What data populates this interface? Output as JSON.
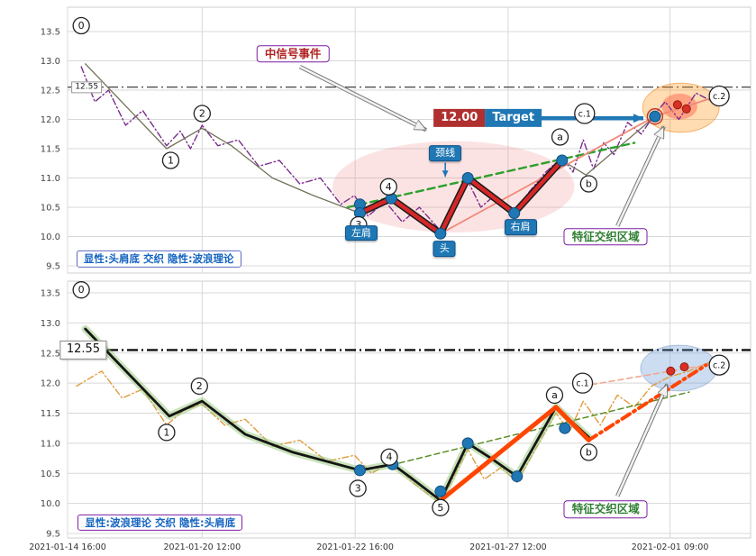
{
  "axis": {
    "x_tick_labels": [
      "2021-01-14 16:00",
      "2021-01-20 12:00",
      "2021-01-22 16:00",
      "2021-01-27 12:00",
      "2021-02-01 09:00"
    ],
    "x_tick_positions": [
      0,
      19.7,
      42.1,
      64.5,
      88.2
    ],
    "y_ticks": [
      13.5,
      13.0,
      12.5,
      12.0,
      11.5,
      11.0,
      10.5,
      10.0,
      9.5
    ]
  },
  "colors": {
    "accent_blue": "#1f77b4",
    "pattern_red": "#d62728",
    "emerging_orange": "#ff4500",
    "hidden_purple": "#7b2d8e",
    "hidden_orange": "#e09c3c",
    "neckline_green": "#2ca02c",
    "grid": "#d8d8d8"
  },
  "chart_data": [
    {
      "id": "top",
      "type": "line",
      "ylim": [
        9.5,
        13.5
      ],
      "level_line": {
        "value": 12.55,
        "label": "12.55"
      },
      "series": [
        {
          "name": "hidden-wave-theory",
          "color": "#7b2d8e",
          "width": 1.4,
          "dash": "7 3 1.5 3",
          "points": [
            [
              2,
              12.9
            ],
            [
              4,
              12.3
            ],
            [
              6,
              12.5
            ],
            [
              8.5,
              11.9
            ],
            [
              11,
              12.15
            ],
            [
              14.5,
              11.55
            ],
            [
              16.5,
              11.8
            ],
            [
              18,
              11.5
            ],
            [
              19.7,
              11.9
            ],
            [
              22,
              11.55
            ],
            [
              25,
              11.65
            ],
            [
              28,
              11.2
            ],
            [
              31,
              11.3
            ],
            [
              34,
              10.9
            ],
            [
              37,
              11.0
            ],
            [
              40,
              10.55
            ],
            [
              42,
              10.7
            ],
            [
              44,
              10.35
            ],
            [
              46.5,
              10.6
            ],
            [
              49,
              10.25
            ],
            [
              51.5,
              10.5
            ],
            [
              54.6,
              10.1
            ],
            [
              56.5,
              10.6
            ],
            [
              58.6,
              10.95
            ],
            [
              60.5,
              10.5
            ],
            [
              62.5,
              10.7
            ],
            [
              65,
              10.35
            ],
            [
              67.5,
              10.75
            ],
            [
              70,
              11.1
            ],
            [
              72.4,
              11.35
            ],
            [
              74,
              11.1
            ],
            [
              75.5,
              11.65
            ],
            [
              77,
              11.15
            ],
            [
              78.5,
              11.6
            ],
            [
              80,
              11.4
            ],
            [
              82,
              11.95
            ],
            [
              84,
              11.75
            ],
            [
              86,
              12.1
            ],
            [
              87.5,
              12.3
            ],
            [
              89.5,
              12.0
            ],
            [
              92,
              12.45
            ],
            [
              94.5,
              12.3
            ]
          ]
        },
        {
          "name": "price-main",
          "color": "#72725a",
          "width": 1.3,
          "points": [
            [
              2.6,
              12.95
            ],
            [
              14.5,
              11.5
            ],
            [
              19.7,
              11.85
            ],
            [
              24,
              11.55
            ],
            [
              30,
              11.0
            ],
            [
              36,
              10.7
            ],
            [
              42.8,
              10.4
            ],
            [
              47.4,
              10.65
            ],
            [
              54.6,
              10.05
            ],
            [
              58.6,
              11.0
            ],
            [
              65.4,
              10.4
            ],
            [
              72.4,
              11.3
            ],
            [
              75.9,
              11.05
            ],
            [
              86,
              12.05
            ]
          ]
        },
        {
          "name": "neckline-trend",
          "color": "#2ca02c",
          "width": 2.4,
          "dash": "8 5",
          "points": [
            [
              41,
              10.5
            ],
            [
              83,
              11.6
            ]
          ]
        },
        {
          "name": "projection",
          "color": "#f08878",
          "width": 1.8,
          "points": [
            [
              54.6,
              10.05
            ],
            [
              86,
              12.05
            ],
            [
              96.5,
              12.45
            ]
          ]
        },
        {
          "name": "head-shoulders-pattern",
          "color": "#d62728",
          "width": 4.5,
          "outline": "#1a1a1a",
          "points": [
            [
              42.8,
              10.4
            ],
            [
              47.4,
              10.65
            ],
            [
              54.6,
              10.05
            ],
            [
              58.6,
              11.0
            ],
            [
              65.4,
              10.4
            ],
            [
              72.4,
              11.3
            ]
          ]
        }
      ],
      "pivot_dots": [
        [
          42.8,
          10.55
        ],
        [
          42.8,
          10.4
        ],
        [
          47.4,
          10.65
        ],
        [
          54.6,
          10.05
        ],
        [
          58.6,
          11.0
        ],
        [
          65.4,
          10.4
        ],
        [
          72.4,
          11.3
        ],
        [
          86,
          12.05
        ]
      ],
      "signal_dots": [
        [
          89.3,
          12.25
        ],
        [
          90.6,
          12.18
        ]
      ],
      "rings": [
        [
          86,
          12.05
        ]
      ],
      "markers": [
        {
          "label": "0",
          "x": 2.0,
          "p": 13.6
        },
        {
          "label": "1",
          "x": 15.1,
          "p": 11.3
        },
        {
          "label": "2",
          "x": 19.7,
          "p": 12.1
        },
        {
          "label": "3",
          "x": 42.6,
          "p": 10.2
        },
        {
          "label": "4",
          "x": 47.0,
          "p": 10.85
        },
        {
          "label": "a",
          "x": 72.1,
          "p": 11.7
        },
        {
          "label": "b",
          "x": 76.3,
          "p": 10.9
        },
        {
          "label": "c.1",
          "x": 75.7,
          "p": 12.1
        },
        {
          "label": "c.2",
          "x": 95.4,
          "p": 12.4
        }
      ],
      "ellipses": [
        {
          "name": "pattern-zone",
          "cx": 56.5,
          "cp": 10.85,
          "rx": 17.7,
          "rp": 0.78,
          "fill": "rgba(240,128,128,0.22)",
          "stroke": "none"
        },
        {
          "name": "convergence-outer",
          "cx": 89.8,
          "cp": 12.2,
          "rx": 5.6,
          "rp": 0.42,
          "fill": "rgba(255,140,0,0.30)",
          "stroke": "rgba(230,120,0,0.5)"
        },
        {
          "name": "convergence-inner",
          "cx": 89.6,
          "cp": 12.22,
          "rx": 2.6,
          "rp": 0.22,
          "fill": "rgba(255,90,70,0.45)",
          "stroke": "none"
        }
      ],
      "arrows": [
        {
          "name": "signal-event-arrow",
          "style": "ghost",
          "x1": 34,
          "p1": 12.9,
          "x2": 52.5,
          "p2": 11.82
        },
        {
          "name": "target-arrow",
          "style": "blue",
          "x1": 68.8,
          "p1": 12.02,
          "x2": 84.3,
          "p2": 12.02
        },
        {
          "name": "neckline-pointer",
          "style": "thin-blue",
          "x1": 55.3,
          "p1": 11.26,
          "x2": 55.3,
          "p2": 11.02
        },
        {
          "name": "feature-zone-arrow",
          "style": "ghost",
          "x1": 80.5,
          "p1": 10.18,
          "x2": 87.3,
          "p2": 11.88
        }
      ],
      "labels": {
        "level": {
          "text": "12.55",
          "x": 2.8,
          "p": 12.55
        },
        "signal_event": {
          "text": "中信号事件",
          "x": 33,
          "p": 13.12
        },
        "neckline": {
          "text": "颈线",
          "x": 55.3,
          "p": 11.42
        },
        "left_shoulder": {
          "text": "左肩",
          "x": 43.0,
          "p": 10.06
        },
        "head": {
          "text": "头",
          "x": 55.2,
          "p": 9.79
        },
        "right_shoulder": {
          "text": "右肩",
          "x": 66.3,
          "p": 10.16
        },
        "target": {
          "value": "12.00",
          "word": "Target",
          "x": 61.5,
          "p": 12.02
        },
        "feature_zone": {
          "text": "特征交织区域",
          "x": 78.8,
          "p": 10.0
        },
        "summary": {
          "text": "显性:头肩底 交织 隐性:波浪理论",
          "x": 1.3,
          "p": 9.62,
          "anchor": "left"
        }
      }
    },
    {
      "id": "bottom",
      "type": "line",
      "ylim": [
        9.5,
        13.5
      ],
      "level_line": {
        "value": 12.55,
        "label": "12.55"
      },
      "series": [
        {
          "name": "hidden-head-shoulders",
          "color": "#e09c3c",
          "width": 1.4,
          "dash": "7 3 1.5 3",
          "points": [
            [
              1.3,
              11.95
            ],
            [
              5,
              12.2
            ],
            [
              8,
              11.75
            ],
            [
              11,
              11.9
            ],
            [
              14.5,
              11.3
            ],
            [
              17,
              11.55
            ],
            [
              19.7,
              11.65
            ],
            [
              23,
              11.3
            ],
            [
              26,
              11.4
            ],
            [
              30,
              10.95
            ],
            [
              34,
              11.05
            ],
            [
              38,
              10.7
            ],
            [
              42,
              10.8
            ],
            [
              44.5,
              10.5
            ],
            [
              47.6,
              10.7
            ],
            [
              50.5,
              10.35
            ],
            [
              54.6,
              10.0
            ],
            [
              57,
              10.55
            ],
            [
              58.6,
              10.9
            ],
            [
              61,
              10.4
            ],
            [
              63.5,
              10.6
            ],
            [
              65.8,
              10.35
            ],
            [
              68.5,
              10.9
            ],
            [
              71.5,
              11.5
            ],
            [
              73.5,
              11.2
            ],
            [
              75.5,
              11.7
            ],
            [
              78,
              11.3
            ],
            [
              80.5,
              11.8
            ],
            [
              83,
              11.6
            ],
            [
              85.5,
              11.95
            ],
            [
              88,
              12.1
            ],
            [
              91,
              12.2
            ],
            [
              94,
              12.35
            ]
          ]
        },
        {
          "name": "trend-line",
          "color": "#5a8f29",
          "width": 1.5,
          "dash": "6 4",
          "points": [
            [
              46,
              10.6
            ],
            [
              91,
              11.85
            ]
          ]
        },
        {
          "name": "projection-dashed",
          "color": "#f0a890",
          "width": 1.6,
          "dash": "6 4",
          "points": [
            [
              75.4,
              11.95
            ],
            [
              93.5,
              12.3
            ]
          ]
        },
        {
          "name": "wave-main",
          "color": "#151515",
          "width": 2.8,
          "glow": "rgba(150,200,120,0.5)",
          "points": [
            [
              2.6,
              12.9
            ],
            [
              14.9,
              11.45
            ],
            [
              19.7,
              11.7
            ],
            [
              26,
              11.15
            ],
            [
              33,
              10.85
            ],
            [
              42.8,
              10.55
            ],
            [
              47.6,
              10.65
            ],
            [
              50,
              10.45
            ],
            [
              54.6,
              10.05
            ],
            [
              58.6,
              11.0
            ],
            [
              62,
              10.75
            ],
            [
              65.8,
              10.45
            ],
            [
              71.5,
              11.6
            ],
            [
              76.3,
              11.1
            ]
          ]
        },
        {
          "name": "emerging-leg",
          "color": "#ff4500",
          "width": 5,
          "points": [
            [
              54.6,
              10.05
            ],
            [
              71.5,
              11.6
            ],
            [
              76.3,
              11.05
            ]
          ]
        },
        {
          "name": "emerging-leg-projection",
          "color": "#ff4500",
          "width": 4,
          "dash": "10 5 2 5",
          "points": [
            [
              76.3,
              11.05
            ],
            [
              93.5,
              12.3
            ]
          ]
        }
      ],
      "pivot_dots": [
        [
          42.8,
          10.55
        ],
        [
          47.6,
          10.65
        ],
        [
          54.6,
          10.2
        ],
        [
          58.6,
          11.0
        ],
        [
          65.8,
          10.45
        ],
        [
          72.8,
          11.25
        ]
      ],
      "signal_dots": [
        [
          88.3,
          12.2
        ],
        [
          90.3,
          12.27
        ]
      ],
      "rings": [],
      "markers": [
        {
          "label": "0",
          "x": 2.0,
          "p": 13.55
        },
        {
          "label": "1",
          "x": 14.5,
          "p": 11.18
        },
        {
          "label": "2",
          "x": 19.3,
          "p": 11.95
        },
        {
          "label": "3",
          "x": 42.5,
          "p": 10.25
        },
        {
          "label": "4",
          "x": 47.1,
          "p": 10.77
        },
        {
          "label": "5",
          "x": 54.6,
          "p": 9.93
        },
        {
          "label": "a",
          "x": 71.3,
          "p": 11.8
        },
        {
          "label": "b",
          "x": 76.3,
          "p": 10.85
        },
        {
          "label": "c.1",
          "x": 75.4,
          "p": 12.0
        },
        {
          "label": "c.2",
          "x": 95.4,
          "p": 12.3
        }
      ],
      "ellipses": [
        {
          "name": "convergence-zone",
          "cx": 89.5,
          "cp": 12.25,
          "rx": 5.6,
          "rp": 0.38,
          "fill": "rgba(110,155,215,0.35)",
          "stroke": "rgba(80,120,180,0.4)"
        }
      ],
      "arrows": [
        {
          "name": "feature-zone-arrow",
          "style": "ghost",
          "x1": 80.5,
          "p1": 10.12,
          "x2": 87.8,
          "p2": 11.98
        }
      ],
      "labels": {
        "level": {
          "text": "12.55",
          "x": 2.3,
          "p": 12.55
        },
        "feature_zone": {
          "text": "特征交织区域",
          "x": 78.8,
          "p": 9.9
        },
        "summary": {
          "text": "显性:波浪理论 交织 隐性:头肩底",
          "x": 1.5,
          "p": 9.68,
          "anchor": "left"
        }
      }
    }
  ]
}
